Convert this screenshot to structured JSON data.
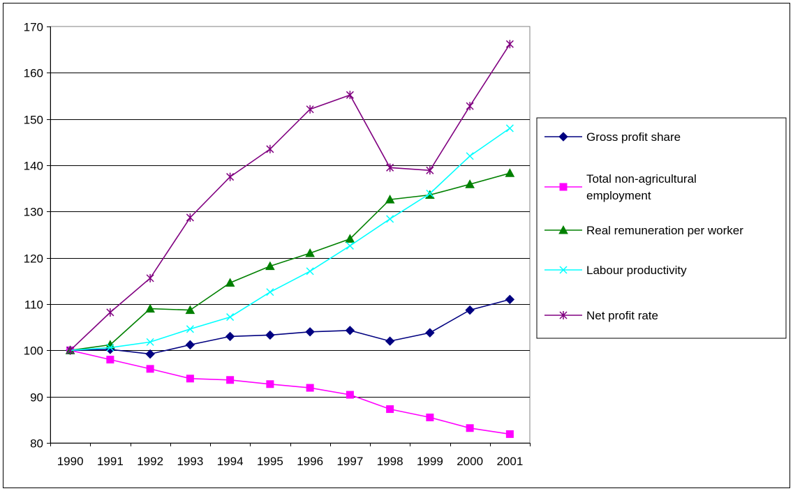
{
  "chart_data": {
    "type": "line",
    "title": "",
    "xlabel": "",
    "ylabel": "",
    "x": [
      "1990",
      "1991",
      "1992",
      "1993",
      "1994",
      "1995",
      "1996",
      "1997",
      "1998",
      "1999",
      "2000",
      "2001"
    ],
    "ylim": [
      80,
      170
    ],
    "yticks": [
      80,
      90,
      100,
      110,
      120,
      130,
      140,
      150,
      160,
      170
    ],
    "grid": "horizontal",
    "legend_position": "right",
    "series": [
      {
        "name": "Gross profit share",
        "marker": "diamond",
        "color": "#000080",
        "values": [
          100,
          100.2,
          99.2,
          101.2,
          103.0,
          103.3,
          104.0,
          104.3,
          102.0,
          103.8,
          108.7,
          111.0
        ]
      },
      {
        "name": "Total non-agricultural employment",
        "marker": "square",
        "color": "#FF00FF",
        "values": [
          100,
          98.0,
          96.0,
          93.9,
          93.6,
          92.7,
          91.9,
          90.4,
          87.3,
          85.5,
          83.2,
          81.9
        ]
      },
      {
        "name": "Real remuneration per worker",
        "marker": "triangle",
        "color": "#008000",
        "values": [
          100,
          101.2,
          109.0,
          108.7,
          114.6,
          118.2,
          121.0,
          124.1,
          132.6,
          133.6,
          135.9,
          138.3
        ]
      },
      {
        "name": "Labour productivity",
        "marker": "x",
        "color": "#00FFFF",
        "values": [
          100,
          100.6,
          101.8,
          104.6,
          107.2,
          112.6,
          117.1,
          122.6,
          128.4,
          133.9,
          142.0,
          148.0
        ]
      },
      {
        "name": "Net profit rate",
        "marker": "asterisk",
        "color": "#800080",
        "values": [
          100,
          108.2,
          115.6,
          128.7,
          137.5,
          143.5,
          152.1,
          155.2,
          139.5,
          138.9,
          152.8,
          166.2
        ]
      }
    ],
    "legend_labels": [
      [
        "Gross profit share"
      ],
      [
        "Total non-agricultural",
        "employment"
      ],
      [
        "Real remuneration per worker"
      ],
      [
        "Labour productivity"
      ],
      [
        "Net profit rate"
      ]
    ]
  }
}
